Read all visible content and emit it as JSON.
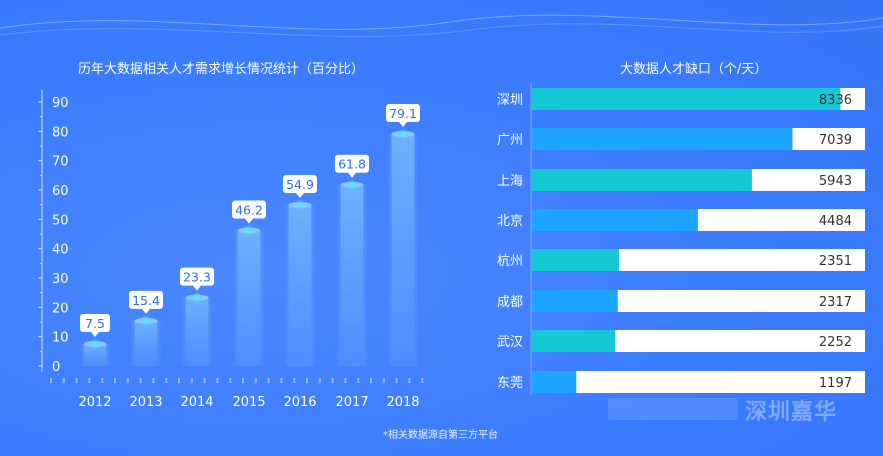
{
  "left_title": "历年大数据相关人才需求增长情况统计（百分比）",
  "right_title": "大数据人才缺口（个/天）",
  "footnote": "*相关数据源自第三方平台",
  "watermark": "深圳嘉华",
  "colors": {
    "background": "#3b7cff",
    "bar_left": "#5aa3ff",
    "teal": "#16c8d4",
    "blue": "#1ea5ff",
    "track": "#ffffff",
    "label_text": "#2f6ef5",
    "axis": "#cfe0ff"
  },
  "chart_data": [
    {
      "type": "bar",
      "title": "历年大数据相关人才需求增长情况统计（百分比）",
      "categories": [
        "2012",
        "2013",
        "2014",
        "2015",
        "2016",
        "2017",
        "2018"
      ],
      "values": [
        7.5,
        15.4,
        23.3,
        46.2,
        54.9,
        61.8,
        79.1
      ],
      "value_labels": [
        "7.5",
        "15.4",
        "23.3",
        "46.2",
        "54.9",
        "61.8",
        "79.1"
      ],
      "yticks": [
        "0",
        "10",
        "20",
        "30",
        "40",
        "50",
        "60",
        "70",
        "80",
        "90"
      ],
      "ylim": [
        0,
        90
      ],
      "xlabel": "",
      "ylabel": ""
    },
    {
      "type": "bar",
      "orientation": "horizontal",
      "title": "大数据人才缺口（个/天）",
      "categories": [
        "深圳",
        "广州",
        "上海",
        "北京",
        "杭州",
        "成都",
        "武汉",
        "东莞"
      ],
      "values": [
        8336,
        7039,
        5943,
        4484,
        2351,
        2317,
        2252,
        1197
      ],
      "value_labels": [
        "8336",
        "7039",
        "5943",
        "4484",
        "2351",
        "2317",
        "2252",
        "1197"
      ],
      "bar_colors": [
        "teal",
        "blue",
        "teal",
        "blue",
        "teal",
        "blue",
        "teal",
        "blue"
      ],
      "xlim": [
        0,
        9000
      ]
    }
  ]
}
